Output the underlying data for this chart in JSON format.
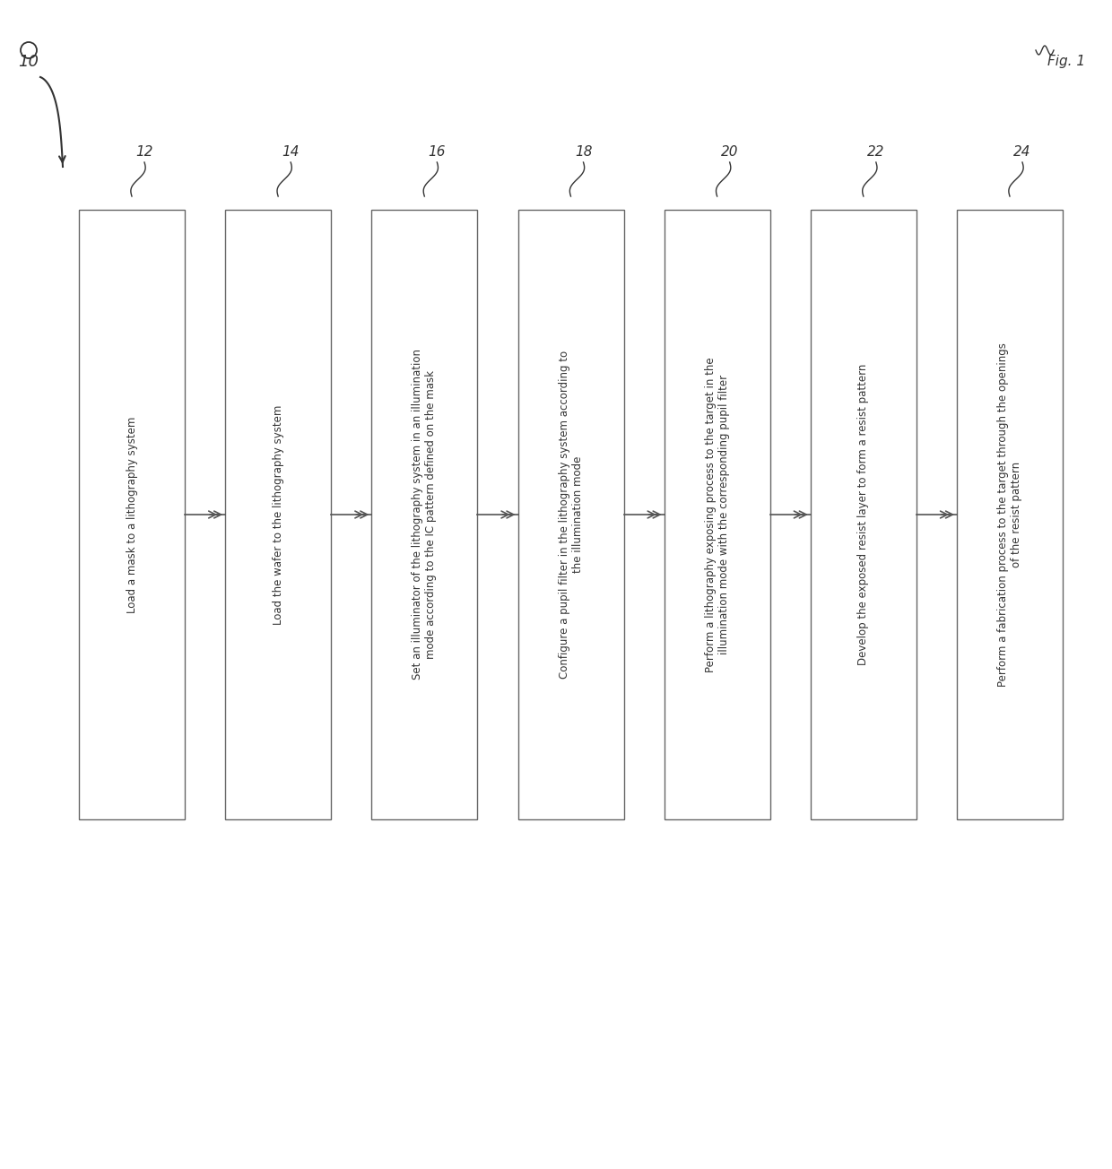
{
  "title": "Fig. 1",
  "flow_label": "10",
  "boxes": [
    {
      "id": "12",
      "label": "Load a mask to a lithography system"
    },
    {
      "id": "14",
      "label": "Load the wafer to the lithography system"
    },
    {
      "id": "16",
      "label": "Set an illuminator of the lithography system in an illumination\nmode according to the IC pattern defined on the mask"
    },
    {
      "id": "18",
      "label": "Configure a pupil filter in the lithography system according to\nthe illumination mode"
    },
    {
      "id": "20",
      "label": "Perform a lithography exposing process to the target in the\nillumination mode with the corresponding pupil filter"
    },
    {
      "id": "22",
      "label": "Develop the exposed resist layer to form a resist pattern"
    },
    {
      "id": "24",
      "label": "Perform a fabrication process to the target through the openings\nof the resist pattern"
    }
  ],
  "box_color": "#ffffff",
  "box_edge_color": "#666666",
  "arrow_color": "#555555",
  "text_color": "#333333",
  "label_color": "#333333",
  "bg_color": "#ffffff"
}
